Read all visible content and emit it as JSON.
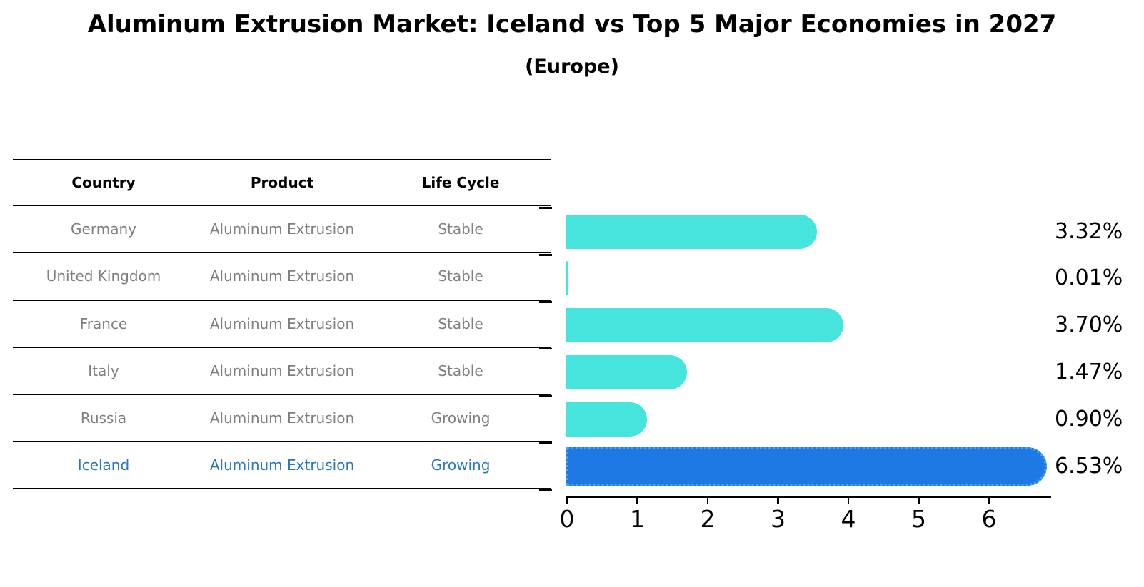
{
  "title": "Aluminum Extrusion Market: Iceland vs Top 5 Major Economies in 2027",
  "subtitle": "(Europe)",
  "table": {
    "headers": [
      "Country",
      "Product",
      "Life Cycle"
    ],
    "rows": [
      {
        "country": "Germany",
        "product": "Aluminum Extrusion",
        "life_cycle": "Stable"
      },
      {
        "country": "United Kingdom",
        "product": "Aluminum Extrusion",
        "life_cycle": "Stable"
      },
      {
        "country": "France",
        "product": "Aluminum Extrusion",
        "life_cycle": "Stable"
      },
      {
        "country": "Italy",
        "product": "Aluminum Extrusion",
        "life_cycle": "Stable"
      },
      {
        "country": "Russia",
        "product": "Aluminum Extrusion",
        "life_cycle": "Growing"
      },
      {
        "country": "Iceland",
        "product": "Aluminum Extrusion",
        "life_cycle": "Growing"
      }
    ],
    "highlight_row": "Iceland"
  },
  "chart_data": {
    "type": "bar",
    "orientation": "horizontal",
    "title": "Aluminum Extrusion Market: Iceland vs Top 5 Major Economies in 2027",
    "subtitle": "(Europe)",
    "categories": [
      "Germany",
      "United Kingdom",
      "France",
      "Italy",
      "Russia",
      "Iceland"
    ],
    "values": [
      3.32,
      0.01,
      3.7,
      1.47,
      0.9,
      6.53
    ],
    "value_labels": [
      "3.32%",
      "0.01%",
      "3.70%",
      "1.47%",
      "0.90%",
      "6.53%"
    ],
    "x_ticks": [
      "0",
      "1",
      "2",
      "3",
      "4",
      "5",
      "6"
    ],
    "xlim": [
      0,
      6.9
    ],
    "unit": "percent",
    "highlight_index": 5,
    "grid": false,
    "legend": "none"
  },
  "colors": {
    "bar_default": "#45E4DD",
    "bar_highlight": "#1E79E4",
    "bar_highlight_border": "#4AA3EF",
    "text_muted": "#7F7F7F",
    "text_highlight": "#2878BE",
    "axis": "#000000",
    "background": "#FFFFFF"
  }
}
